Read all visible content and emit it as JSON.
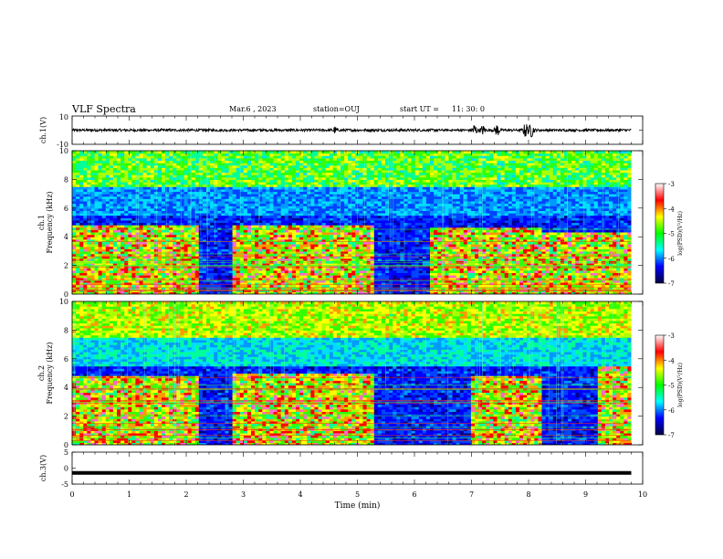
{
  "header": {
    "title": "VLF Spectra",
    "date": "Mar.6 , 2023",
    "station": "station=OUJ",
    "start_ut_label": "start UT =",
    "start_ut_value": "11: 30: 0"
  },
  "colorbar": {
    "label": "log(PSD)(V²/Hz)",
    "ticks": [
      "-3",
      "-4",
      "-5",
      "-6",
      "-7"
    ],
    "stops": [
      "#ffffff",
      "#ff0000",
      "#ffff00",
      "#00ff00",
      "#00ffff",
      "#0000ff",
      "#000040"
    ]
  },
  "chart_data": [
    {
      "type": "line",
      "panel": "ch1-waveform",
      "ylabel": "ch.1(V)",
      "ylim": [
        -10,
        10
      ],
      "ytick_labels": [
        "10",
        "-10"
      ],
      "x": "Time (min)",
      "xlim": [
        0,
        10
      ],
      "notes": "amplitude ~ +/-1 V baseline; bursts up to ~ +/-5 V near 7.0-7.5 min and 7.9-8.1 min",
      "bursts": [
        {
          "t": 4.6,
          "amp": 2.0
        },
        {
          "t": 7.05,
          "amp": 4.5
        },
        {
          "t": 7.2,
          "amp": 3.0
        },
        {
          "t": 7.45,
          "amp": 4.0
        },
        {
          "t": 7.95,
          "amp": 5.0
        },
        {
          "t": 8.05,
          "amp": 4.5
        }
      ]
    },
    {
      "type": "heatmap",
      "panel": "ch1-spectrogram",
      "ylabel_top": "ch.1",
      "ylabel": "Frequency (kHz)",
      "ylim": [
        0,
        10
      ],
      "yticks": [
        "0",
        "2",
        "4",
        "6",
        "8",
        "10"
      ],
      "xlim": [
        0,
        10
      ],
      "color_range": [
        -7,
        -3
      ],
      "active_intervals": [
        {
          "from": 0.0,
          "to": 2.2,
          "fmax": 4.8
        },
        {
          "from": 2.8,
          "to": 5.3,
          "fmax": 4.8
        },
        {
          "from": 6.3,
          "to": 8.2,
          "fmax": 4.6
        },
        {
          "from": 8.2,
          "to": 9.8,
          "fmax": 4.3
        }
      ]
    },
    {
      "type": "heatmap",
      "panel": "ch2-spectrogram",
      "ylabel_top": "ch.2",
      "ylabel": "Frequency (kHz)",
      "ylim": [
        0,
        10
      ],
      "yticks": [
        "0",
        "2",
        "4",
        "6",
        "8",
        "10"
      ],
      "xlim": [
        0,
        10
      ],
      "color_range": [
        -7,
        -3
      ],
      "active_intervals": [
        {
          "from": 0.0,
          "to": 2.2,
          "fmax": 4.8
        },
        {
          "from": 2.8,
          "to": 5.3,
          "fmax": 5.0
        },
        {
          "from": 7.0,
          "to": 8.2,
          "fmax": 4.8
        },
        {
          "from": 9.2,
          "to": 9.8,
          "fmax": 5.8
        }
      ]
    },
    {
      "type": "line",
      "panel": "ch3-waveform",
      "ylabel": "ch.3(V)",
      "ylim": [
        -5,
        5
      ],
      "ytick_labels": [
        "5",
        "0",
        "-5"
      ],
      "xlabel": "Time (min)",
      "xlim": [
        0,
        10
      ],
      "xtick_labels": [
        "0",
        "1",
        "2",
        "3",
        "4",
        "5",
        "6",
        "7",
        "8",
        "9",
        "10"
      ],
      "y_constant": -1.5,
      "x_data_end": 9.8
    }
  ]
}
